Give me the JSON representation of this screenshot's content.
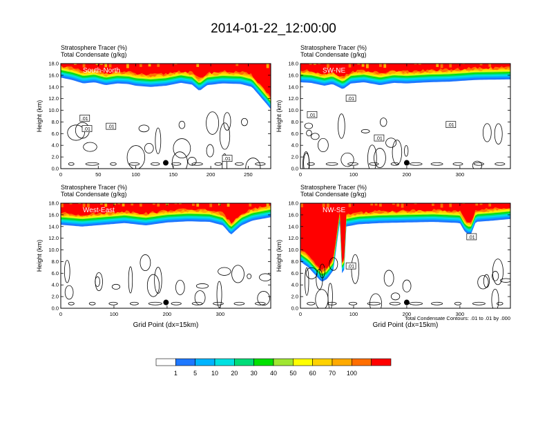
{
  "title": "2014-01-22_12:00:00",
  "colors": {
    "bins": [
      "#ffffff",
      "#1e78ff",
      "#00b4ff",
      "#00e1e1",
      "#00dc78",
      "#00e100",
      "#a0e632",
      "#ffff00",
      "#ffd200",
      "#ffaa00",
      "#ff6e00",
      "#ff0000"
    ],
    "contour": "#000000"
  },
  "colorbar": {
    "labels": [
      "1",
      "5",
      "10",
      "20",
      "30",
      "40",
      "50",
      "60",
      "70",
      "100"
    ]
  },
  "footnote": "Total Condensate Contours: .01 to .01 by .000",
  "chart_data": [
    {
      "type": "heatmap",
      "variables": [
        "Stratosphere Tracer   (%)",
        "Total Condensate   (g/kg)"
      ],
      "panel_label": "South-North",
      "xlabel": "",
      "ylabel": "Height (km)",
      "xlim": [
        0,
        280
      ],
      "ylim": [
        0,
        18
      ],
      "xticks": [
        0,
        50,
        100,
        150,
        200,
        250
      ],
      "yticks": [
        "0.0",
        "2.0",
        "4.0",
        "6.0",
        "8.0",
        "10.0",
        "12.0",
        "14.0",
        "16.0",
        "18.0"
      ],
      "tracer_front_km": [
        [
          0,
          15.6
        ],
        [
          15,
          15.2
        ],
        [
          30,
          14.6
        ],
        [
          45,
          14.8
        ],
        [
          60,
          14.3
        ],
        [
          75,
          14.6
        ],
        [
          90,
          14.5
        ],
        [
          100,
          14.2
        ],
        [
          120,
          14.0
        ],
        [
          140,
          14.2
        ],
        [
          160,
          14.7
        ],
        [
          175,
          14.4
        ],
        [
          185,
          13.3
        ],
        [
          195,
          14.3
        ],
        [
          215,
          14.6
        ],
        [
          240,
          14.5
        ],
        [
          255,
          14.0
        ],
        [
          265,
          12.5
        ],
        [
          275,
          11.0
        ],
        [
          280,
          10.2
        ]
      ],
      "contour_labels": [
        {
          "text": ".01",
          "x": 32,
          "y": 8.6
        },
        {
          "text": ".01",
          "x": 35,
          "y": 6.8
        },
        {
          "text": ".01",
          "x": 67,
          "y": 7.2
        },
        {
          "text": ".01",
          "x": 222,
          "y": 1.7
        }
      ],
      "marker": {
        "x": 140,
        "y": 1.0
      }
    },
    {
      "type": "heatmap",
      "variables": [
        "Stratosphere Tracer   (%)",
        "Total Condensate   (g/kg)"
      ],
      "panel_label": "SW-NE",
      "xlabel": "",
      "ylabel": "Height (km)",
      "xlim": [
        0,
        395
      ],
      "ylim": [
        0,
        18
      ],
      "xticks": [
        0,
        100,
        200,
        300
      ],
      "yticks": [
        "0.0",
        "2.0",
        "4.0",
        "6.0",
        "8.0",
        "10.0",
        "12.0",
        "14.0",
        "16.0",
        "18.0"
      ],
      "tracer_front_km": [
        [
          0,
          14.8
        ],
        [
          20,
          14.7
        ],
        [
          45,
          14.2
        ],
        [
          60,
          14.5
        ],
        [
          80,
          13.6
        ],
        [
          95,
          14.6
        ],
        [
          120,
          14.8
        ],
        [
          150,
          14.3
        ],
        [
          175,
          14.7
        ],
        [
          200,
          14.6
        ],
        [
          240,
          14.8
        ],
        [
          280,
          14.9
        ],
        [
          330,
          15.2
        ],
        [
          395,
          15.3
        ]
      ],
      "contour_labels": [
        {
          "text": ".01",
          "x": 22,
          "y": 9.2
        },
        {
          "text": ".01",
          "x": 95,
          "y": 12.0
        },
        {
          "text": ".01",
          "x": 148,
          "y": 5.2
        },
        {
          "text": ".01",
          "x": 283,
          "y": 7.5
        }
      ],
      "marker": {
        "x": 200,
        "y": 1.0
      }
    },
    {
      "type": "heatmap",
      "variables": [
        "Stratosphere Tracer   (%)",
        "Total Condensate   (g/kg)"
      ],
      "panel_label": "West-East",
      "xlabel": "Grid Point (dx=15km)",
      "ylabel": "Height (km)",
      "xlim": [
        0,
        395
      ],
      "ylim": [
        0,
        18
      ],
      "xticks": [
        0,
        100,
        200,
        300
      ],
      "yticks": [
        "0.0",
        "2.0",
        "4.0",
        "6.0",
        "8.0",
        "10.0",
        "12.0",
        "14.0",
        "16.0",
        "18.0"
      ],
      "tracer_front_km": [
        [
          0,
          14.3
        ],
        [
          40,
          14.0
        ],
        [
          80,
          14.3
        ],
        [
          120,
          14.6
        ],
        [
          160,
          14.2
        ],
        [
          200,
          14.7
        ],
        [
          240,
          14.9
        ],
        [
          280,
          14.8
        ],
        [
          305,
          14.2
        ],
        [
          320,
          12.6
        ],
        [
          340,
          14.2
        ],
        [
          360,
          15.0
        ],
        [
          395,
          15.6
        ]
      ],
      "contour_labels": [],
      "marker": {
        "x": 198,
        "y": 1.0
      }
    },
    {
      "type": "heatmap",
      "variables": [
        "Stratosphere Tracer   (%)",
        "Total Condensate   (g/kg)"
      ],
      "panel_label": "NW-SE",
      "xlabel": "Grid Point (dx=15km)",
      "ylabel": "Height (km)",
      "xlim": [
        0,
        395
      ],
      "ylim": [
        0,
        18
      ],
      "xticks": [
        0,
        100,
        200,
        300
      ],
      "yticks": [
        "0.0",
        "2.0",
        "4.0",
        "6.0",
        "8.0",
        "10.0",
        "12.0",
        "14.0",
        "16.0",
        "18.0"
      ],
      "tracer_front_km": [
        [
          0,
          8.0
        ],
        [
          15,
          7.0
        ],
        [
          30,
          5.5
        ],
        [
          40,
          4.5
        ],
        [
          50,
          5.0
        ],
        [
          62,
          6.5
        ],
        [
          70,
          12.0
        ],
        [
          75,
          15.2
        ],
        [
          78,
          6.0
        ],
        [
          82,
          6.0
        ],
        [
          86,
          14.0
        ],
        [
          110,
          14.4
        ],
        [
          150,
          14.6
        ],
        [
          200,
          14.7
        ],
        [
          250,
          14.8
        ],
        [
          300,
          14.6
        ],
        [
          310,
          13.0
        ],
        [
          320,
          12.5
        ],
        [
          330,
          14.8
        ],
        [
          360,
          15.0
        ],
        [
          395,
          15.3
        ]
      ],
      "contour_labels": [
        {
          "text": ".01",
          "x": 95,
          "y": 7.2
        },
        {
          "text": ".01",
          "x": 322,
          "y": 12.2
        }
      ],
      "marker": {
        "x": 200,
        "y": 1.0
      }
    }
  ]
}
